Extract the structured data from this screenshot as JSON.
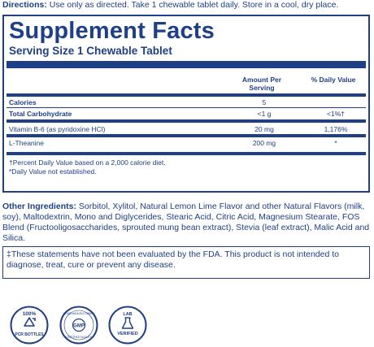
{
  "directions": {
    "label": "Directions:",
    "text": " Use only as directed. Take 1 chewable tablet daily. Store in a cool, dry place."
  },
  "facts": {
    "title": "Supplement Facts",
    "serving": "Serving Size 1 Chewable Tablet",
    "col_amount": "Amount Per Serving",
    "col_dv": "% Daily Value",
    "rows": [
      {
        "name": "Calories",
        "amount": "5",
        "dv": ""
      },
      {
        "name": "Total Carbohydrate",
        "amount": "<1 g",
        "dv": "<1%†"
      },
      {
        "name": "Vitamin B-6 (as pyridoxine HCl)",
        "amount": "20 mg",
        "dv": "1,176%"
      },
      {
        "name": "L-Theanine",
        "amount": "200 mg",
        "dv": "*"
      }
    ],
    "footnote1": "†Percent Daily Value based on a 2,000 calorie diet.",
    "footnote2": "*Daily Value not established."
  },
  "ingredients": {
    "label": "Other Ingredients:",
    "text": " Sorbitol, Xylitol, Natural Lemon Lime Flavor and other Natural Flavors (milk, soy), Maltodextrin, Mono and Diglycerides, Stearic Acid, Citric Acid, Magnesium Stearate, FOS Blend (Fructooligosaccharides, sprouted mung bean extract), Stevia (leaf extract), Malic Acid and Silica."
  },
  "fda": {
    "text": "‡These statements have not been evaluated by the FDA. This product is not intended to diagnose, treat, cure or prevent any disease."
  },
  "badges": [
    {
      "icon": "recycle-icon",
      "line1": "100%",
      "line2": "PCR BOTTLES"
    },
    {
      "icon": "gmp-icon",
      "line1": "GOOD MANUFACTURING",
      "center": "GMP",
      "line2": "CERTIFIED FACILITY"
    },
    {
      "icon": "lab-flask-icon",
      "line1": "LAB",
      "line2": "VERIFIED"
    }
  ],
  "colors": {
    "brand_blue": "#1f3f86"
  }
}
